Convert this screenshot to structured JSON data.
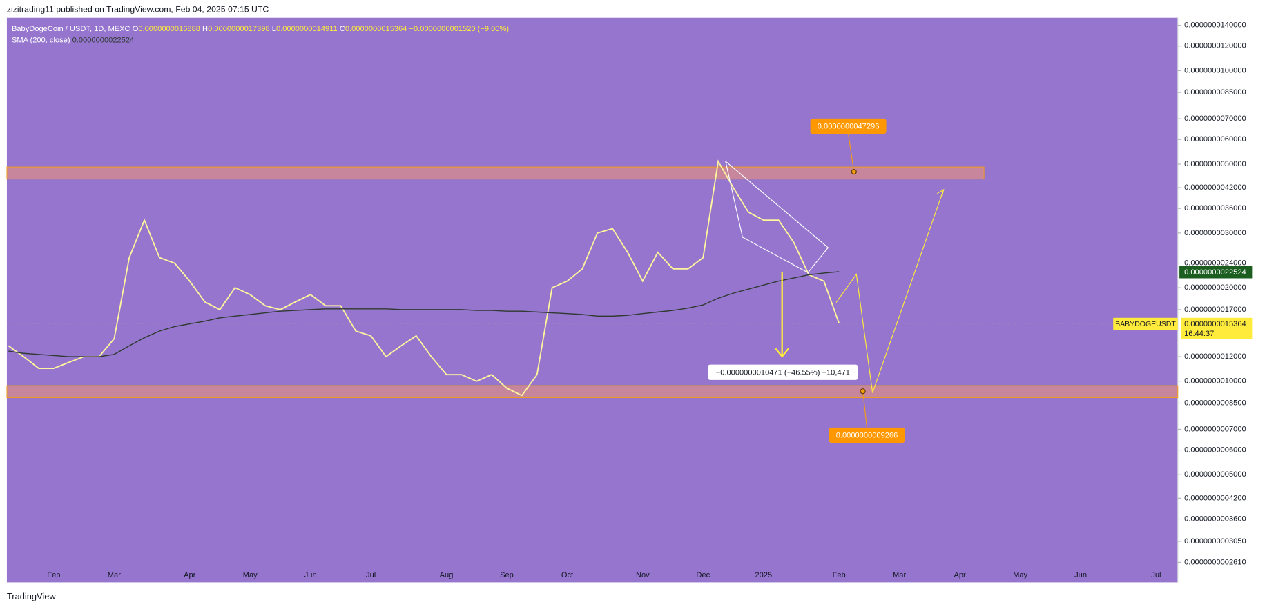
{
  "header": {
    "byline": "zizitrading11 published on TradingView.com, Feb 04, 2025 07:15 UTC"
  },
  "legend": {
    "symbol": "BabyDogeCoin / USDT, 1D, MEXC",
    "ohlc": [
      {
        "label": "O",
        "value": "0.0000000016888"
      },
      {
        "label": "H",
        "value": "0.0000000017398"
      },
      {
        "label": "L",
        "value": "0.0000000014911"
      },
      {
        "label": "C",
        "value": "0.0000000015364"
      }
    ],
    "change": "−0.0000000001520 (−9.00%)",
    "sma_value": "0.0000000022524"
  },
  "chart_data": {
    "type": "line",
    "categories": [
      null,
      null,
      null,
      "Feb",
      null,
      null,
      null,
      "Mar",
      null,
      null,
      null,
      null,
      "Apr",
      null,
      null,
      null,
      "May",
      null,
      null,
      null,
      "Jun",
      null,
      null,
      null,
      "Jul",
      null,
      null,
      null,
      null,
      "Aug",
      null,
      null,
      null,
      "Sep",
      null,
      null,
      null,
      "Oct",
      null,
      null,
      null,
      null,
      "Nov",
      null,
      null,
      null,
      "Dec",
      null,
      null,
      null,
      "2025",
      null,
      null,
      null,
      null,
      "Feb",
      null,
      null,
      null,
      "Mar",
      null,
      null,
      null,
      "Apr",
      null,
      null,
      null,
      "May",
      null,
      null,
      null,
      "Jun",
      null,
      null,
      null,
      null,
      "Jul"
    ],
    "series": [
      {
        "name": "BABYDOGEUSDT",
        "color": "#fff59d",
        "values": [
          1.3e-09,
          1.2e-09,
          1.1e-09,
          1.1e-09,
          1.15e-09,
          1.2e-09,
          1.2e-09,
          1.37e-09,
          2.5e-09,
          3.3e-09,
          2.5e-09,
          2.4e-09,
          2.1e-09,
          1.8e-09,
          1.7e-09,
          2e-09,
          1.9e-09,
          1.75e-09,
          1.7e-09,
          1.8e-09,
          1.9e-09,
          1.75e-09,
          1.75e-09,
          1.45e-09,
          1.4e-09,
          1.2e-09,
          1.3e-09,
          1.4e-09,
          1.2e-09,
          1.05e-09,
          1.05e-09,
          1e-09,
          1.05e-09,
          9.5e-10,
          9e-10,
          1.05e-09,
          2e-09,
          2.1e-09,
          2.3e-09,
          3e-09,
          3.1e-09,
          2.6e-09,
          2.1e-09,
          2.6e-09,
          2.3e-09,
          2.3e-09,
          2.5e-09,
          5.1e-09,
          4.2e-09,
          3.5e-09,
          3.3e-09,
          3.3e-09,
          2.8e-09,
          2.2e-09,
          2.1e-09,
          1.5364e-09,
          null,
          null,
          null,
          null,
          null,
          null,
          null,
          null,
          null,
          null,
          null,
          null,
          null,
          null,
          null,
          null,
          null,
          null,
          null,
          null,
          null
        ]
      },
      {
        "name": "SMA (200, close)",
        "color": "#2f3a30",
        "values": [
          1.25e-09,
          1.23e-09,
          1.22e-09,
          1.21e-09,
          1.2e-09,
          1.2e-09,
          1.2e-09,
          1.22e-09,
          1.3e-09,
          1.38e-09,
          1.45e-09,
          1.5e-09,
          1.53e-09,
          1.56e-09,
          1.6e-09,
          1.62e-09,
          1.64e-09,
          1.66e-09,
          1.68e-09,
          1.69e-09,
          1.7e-09,
          1.71e-09,
          1.71e-09,
          1.71e-09,
          1.71e-09,
          1.71e-09,
          1.7e-09,
          1.7e-09,
          1.7e-09,
          1.7e-09,
          1.7e-09,
          1.69e-09,
          1.69e-09,
          1.68e-09,
          1.68e-09,
          1.67e-09,
          1.66e-09,
          1.65e-09,
          1.64e-09,
          1.62e-09,
          1.62e-09,
          1.63e-09,
          1.65e-09,
          1.67e-09,
          1.69e-09,
          1.72e-09,
          1.76e-09,
          1.85e-09,
          1.92e-09,
          1.98e-09,
          2.04e-09,
          2.1e-09,
          2.15e-09,
          2.2e-09,
          2.23e-09,
          2.2524e-09,
          null,
          null,
          null,
          null,
          null,
          null,
          null,
          null,
          null,
          null,
          null,
          null,
          null,
          null,
          null,
          null,
          null,
          null,
          null,
          null,
          null
        ]
      }
    ],
    "ylim": [
      2.25e-10,
      1.48e-08
    ],
    "log_scale": true,
    "yticks": [
      {
        "value": 1.4e-08,
        "label": "0.0000000140000"
      },
      {
        "value": 1.2e-08,
        "label": "0.0000000120000"
      },
      {
        "value": 1e-08,
        "label": "0.0000000100000"
      },
      {
        "value": 8.5e-09,
        "label": "0.0000000085000"
      },
      {
        "value": 7e-09,
        "label": "0.0000000070000"
      },
      {
        "value": 6e-09,
        "label": "0.0000000060000"
      },
      {
        "value": 5e-09,
        "label": "0.0000000050000"
      },
      {
        "value": 4.2e-09,
        "label": "0.0000000042000"
      },
      {
        "value": 3.6e-09,
        "label": "0.0000000036000"
      },
      {
        "value": 3e-09,
        "label": "0.0000000030000"
      },
      {
        "value": 2.4e-09,
        "label": "0.0000000024000"
      },
      {
        "value": 2e-09,
        "label": "0.0000000020000"
      },
      {
        "value": 1.7e-09,
        "label": "0.0000000017000"
      },
      {
        "value": 1.2e-09,
        "label": "0.0000000012000"
      },
      {
        "value": 1e-09,
        "label": "0.0000000010000"
      },
      {
        "value": 8.5e-10,
        "label": "0.0000000008500"
      },
      {
        "value": 7e-10,
        "label": "0.0000000007000"
      },
      {
        "value": 6e-10,
        "label": "0.0000000006000"
      },
      {
        "value": 5e-10,
        "label": "0.0000000005000"
      },
      {
        "value": 4.2e-10,
        "label": "0.0000000004200"
      },
      {
        "value": 3.6e-10,
        "label": "0.0000000003600"
      },
      {
        "value": 3.05e-10,
        "label": "0.0000000003050"
      },
      {
        "value": 2.61e-10,
        "label": "0.0000000002610"
      }
    ]
  },
  "annotations": {
    "target_high": "0.0000000047296",
    "target_low": "0.0000000009266",
    "measure": "−0.0000000010471 (−46.55%) −10,471"
  },
  "price_badge": {
    "price": "0.0000000015364",
    "countdown": "16:44:37"
  },
  "footer": "TradingView"
}
